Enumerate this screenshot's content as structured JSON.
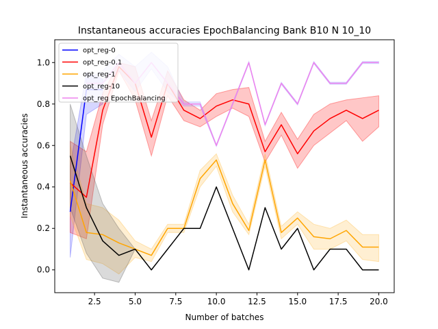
{
  "chart_data": {
    "type": "line",
    "title": "Instantaneous accuracies EpochBalancing Bank B10 N 10_10",
    "xlabel": "Number of batches",
    "ylabel": "Instantaneous accuracies",
    "xlim": [
      0.05,
      20.95
    ],
    "ylim": [
      -0.11,
      1.11
    ],
    "xticks": [
      2.5,
      5.0,
      7.5,
      10.0,
      12.5,
      15.0,
      17.5,
      20.0
    ],
    "xtick_labels": [
      "2.5",
      "5.0",
      "7.5",
      "10.0",
      "12.5",
      "15.0",
      "17.5",
      "20.0"
    ],
    "yticks": [
      0.0,
      0.2,
      0.4,
      0.6,
      0.8,
      1.0
    ],
    "ytick_labels": [
      "0.0",
      "0.2",
      "0.4",
      "0.6",
      "0.8",
      "1.0"
    ],
    "grid": false,
    "legend_position": "top-left",
    "series": [
      {
        "name": "opt_reg-0",
        "color": "#0000ff",
        "band_color": "#4444ff",
        "x": [
          1,
          2,
          3
        ],
        "values": [
          0.28,
          0.87,
          0.87
        ],
        "lower": [
          0.06,
          0.75,
          0.8
        ],
        "upper": [
          0.5,
          0.95,
          0.92
        ]
      },
      {
        "name": "opt_reg-0.1",
        "color": "#ff0000",
        "band_color": "#ff0000",
        "x": [
          1,
          2,
          3,
          4,
          5,
          6,
          7,
          8,
          9,
          10,
          11,
          12,
          13,
          14,
          15,
          16,
          17,
          18,
          19,
          20
        ],
        "values": [
          0.42,
          0.35,
          0.77,
          0.98,
          0.9,
          0.64,
          0.9,
          0.77,
          0.73,
          0.79,
          0.82,
          0.8,
          0.57,
          0.7,
          0.56,
          0.67,
          0.73,
          0.77,
          0.73,
          0.77
        ],
        "lower": [
          0.18,
          0.15,
          0.7,
          0.96,
          0.82,
          0.55,
          0.84,
          0.72,
          0.69,
          0.74,
          0.78,
          0.74,
          0.52,
          0.65,
          0.49,
          0.6,
          0.66,
          0.72,
          0.62,
          0.69
        ],
        "upper": [
          0.62,
          0.57,
          0.85,
          1.0,
          0.98,
          0.72,
          0.96,
          0.82,
          0.77,
          0.85,
          0.87,
          0.88,
          0.62,
          0.76,
          0.63,
          0.75,
          0.8,
          0.82,
          0.83,
          0.84
        ]
      },
      {
        "name": "opt_reg-1",
        "color": "#ffa500",
        "band_color": "#ffb733",
        "x": [
          1,
          2,
          3,
          4,
          5,
          6,
          7,
          8,
          9,
          10,
          11,
          12,
          13,
          14,
          15,
          16,
          17,
          18,
          19,
          20
        ],
        "values": [
          0.43,
          0.18,
          0.17,
          0.13,
          0.1,
          0.07,
          0.2,
          0.2,
          0.44,
          0.53,
          0.32,
          0.19,
          0.53,
          0.18,
          0.25,
          0.16,
          0.15,
          0.19,
          0.11,
          0.11
        ],
        "lower": [
          0.26,
          0.05,
          0.03,
          -0.02,
          0.06,
          0.04,
          0.18,
          0.18,
          0.4,
          0.5,
          0.28,
          0.17,
          0.5,
          0.15,
          0.22,
          0.1,
          0.1,
          0.14,
          0.05,
          0.04
        ],
        "upper": [
          0.6,
          0.32,
          0.3,
          0.24,
          0.14,
          0.1,
          0.22,
          0.22,
          0.48,
          0.56,
          0.36,
          0.22,
          0.56,
          0.21,
          0.28,
          0.22,
          0.2,
          0.24,
          0.17,
          0.17
        ]
      },
      {
        "name": "opt_reg-10",
        "color": "#000000",
        "band_color": "#555555",
        "x": [
          1,
          2,
          3,
          4,
          5,
          6,
          7,
          8,
          9,
          10,
          11,
          12,
          13,
          14,
          15,
          16,
          17,
          18,
          19,
          20
        ],
        "values": [
          0.55,
          0.3,
          0.14,
          0.07,
          0.1,
          0.0,
          0.1,
          0.2,
          0.2,
          0.4,
          0.2,
          0.0,
          0.3,
          0.1,
          0.2,
          0.0,
          0.1,
          0.1,
          0.0,
          0.0
        ],
        "lower": [
          0.3,
          0.08,
          -0.04,
          -0.06,
          0.1,
          0.0,
          0.1,
          0.2,
          0.2,
          0.4,
          0.2,
          0.0,
          0.3,
          0.1,
          0.2,
          0.0,
          0.1,
          0.1,
          0.0,
          0.0
        ],
        "upper": [
          0.8,
          0.55,
          0.32,
          0.2,
          0.1,
          0.0,
          0.1,
          0.2,
          0.2,
          0.4,
          0.2,
          0.0,
          0.3,
          0.1,
          0.2,
          0.0,
          0.1,
          0.1,
          0.0,
          0.0
        ]
      },
      {
        "name": "opt_reg EpochBalancing",
        "color": "#ee82ee",
        "band_color": "#8a8aff",
        "x": [
          2,
          3,
          4,
          5,
          6,
          7,
          8,
          9,
          10,
          11,
          12,
          13,
          14,
          15,
          16,
          17,
          18,
          19,
          20
        ],
        "values": [
          0.9,
          0.9,
          1.0,
          0.9,
          1.0,
          0.9,
          0.8,
          0.8,
          0.6,
          0.8,
          1.0,
          0.7,
          0.9,
          0.8,
          1.0,
          0.9,
          0.9,
          1.0,
          1.0
        ],
        "lower": [
          0.9,
          0.9,
          0.96,
          0.86,
          0.97,
          0.86,
          0.79,
          0.79,
          0.595,
          0.795,
          0.995,
          0.695,
          0.895,
          0.795,
          0.995,
          0.895,
          0.895,
          0.995,
          0.995
        ],
        "upper": [
          0.92,
          0.96,
          1.04,
          0.98,
          1.05,
          0.98,
          0.81,
          0.81,
          0.605,
          0.805,
          1.005,
          0.705,
          0.905,
          0.805,
          1.005,
          0.905,
          0.905,
          1.005,
          1.005
        ]
      }
    ]
  }
}
